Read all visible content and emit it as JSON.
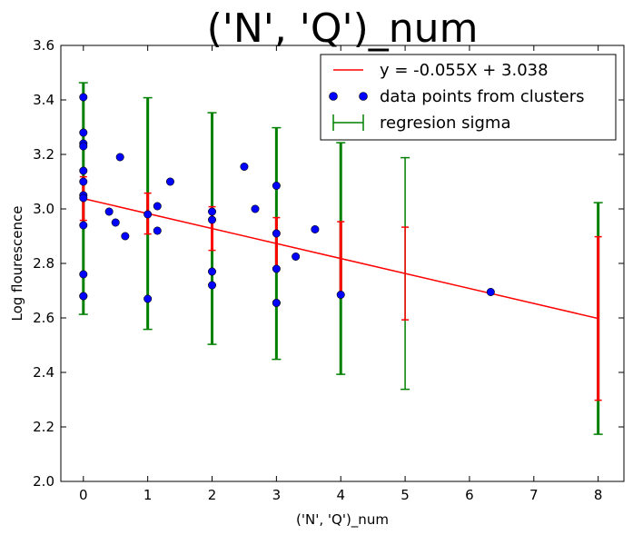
{
  "chart_data": {
    "type": "scatter",
    "title": "('N', 'Q')_num",
    "xlabel": "('N', 'Q')_num",
    "ylabel": "Log flourescence",
    "xlim": [
      -0.35,
      8.4
    ],
    "ylim": [
      2.0,
      3.6
    ],
    "x_ticks": [
      "0",
      "1",
      "2",
      "3",
      "4",
      "5",
      "6",
      "7",
      "8"
    ],
    "y_ticks": [
      "2.0",
      "2.2",
      "2.4",
      "2.6",
      "2.8",
      "3.0",
      "3.2",
      "3.4",
      "3.6"
    ],
    "grid": false,
    "legend": {
      "placement": "top-right",
      "entries": [
        "y = -0.055X + 3.038",
        "data points from clusters",
        "regresion sigma"
      ]
    },
    "regression": {
      "slope": -0.055,
      "intercept": 3.038,
      "x_range": [
        0,
        8
      ],
      "color": "#ff0000"
    },
    "points": {
      "color": "#0000ff",
      "x": [
        0,
        0,
        0,
        0,
        0,
        0,
        0,
        0,
        0,
        0,
        0,
        0,
        0.4,
        0.5,
        0.57,
        0.65,
        1,
        1,
        1.15,
        1.15,
        1.35,
        2,
        2,
        2,
        2,
        2.5,
        2.67,
        3,
        3,
        3,
        3,
        3,
        3.3,
        3.6,
        4,
        6.33
      ],
      "y": [
        3.41,
        3.28,
        3.24,
        3.23,
        3.14,
        3.1,
        3.05,
        3.04,
        2.94,
        2.76,
        2.68,
        2.68,
        2.99,
        2.95,
        3.19,
        2.9,
        2.98,
        2.67,
        3.01,
        2.92,
        3.1,
        2.99,
        2.96,
        2.77,
        2.72,
        3.155,
        3.0,
        3.085,
        2.91,
        2.78,
        2.655,
        2.655,
        2.825,
        2.925,
        2.685,
        2.695
      ]
    },
    "error_bars": [
      {
        "x": 0,
        "y": 3.038,
        "sigma": 0.425,
        "inner_sigma": 0.08,
        "thick": true
      },
      {
        "x": 1,
        "y": 2.983,
        "sigma": 0.425,
        "inner_sigma": 0.075,
        "thick": true
      },
      {
        "x": 2,
        "y": 2.928,
        "sigma": 0.425,
        "inner_sigma": 0.08,
        "thick": true
      },
      {
        "x": 3,
        "y": 2.873,
        "sigma": 0.425,
        "inner_sigma": 0.095,
        "thick": true
      },
      {
        "x": 4,
        "y": 2.818,
        "sigma": 0.425,
        "inner_sigma": 0.135,
        "thick": true
      },
      {
        "x": 5,
        "y": 2.763,
        "sigma": 0.425,
        "inner_sigma": 0.17,
        "thick": false
      },
      {
        "x": 8,
        "y": 2.598,
        "sigma": 0.425,
        "inner_sigma": 0.3,
        "thick": true
      }
    ],
    "colors": {
      "sigma": "#008000",
      "regression": "#ff0000",
      "points": "#0000ff"
    }
  }
}
